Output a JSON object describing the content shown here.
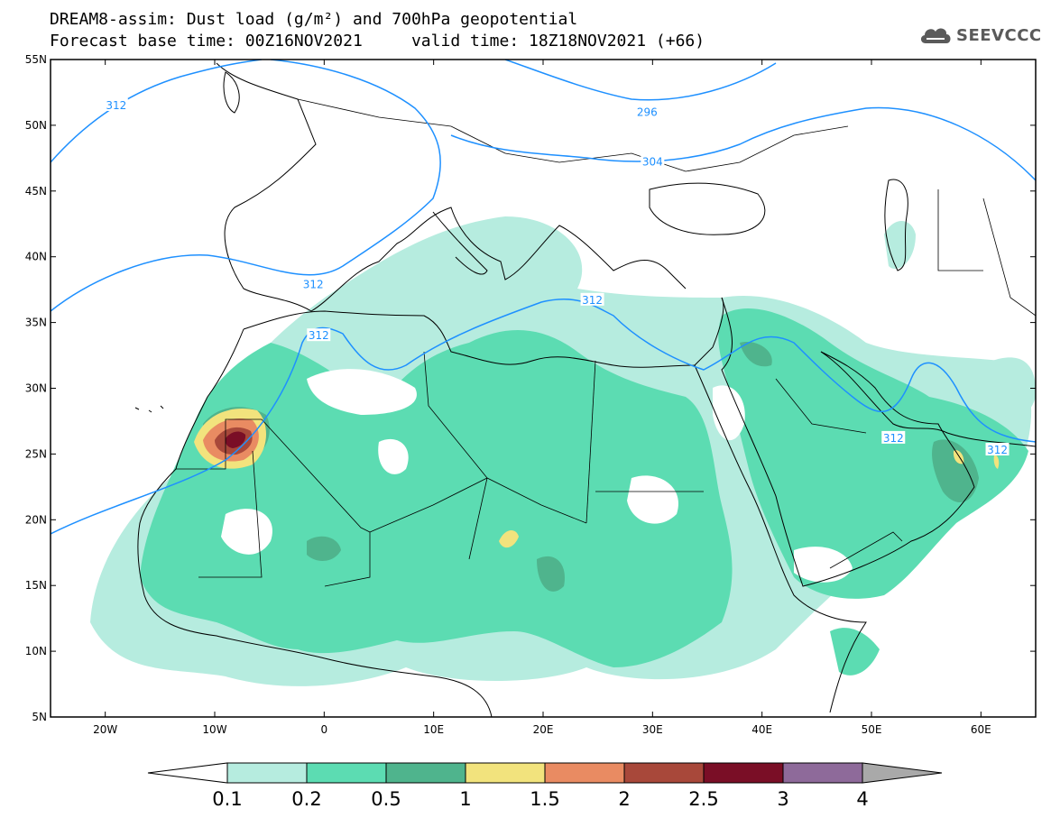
{
  "title_line1": "DREAM8-assim: Dust load (g/m²) and 700hPa geopotential",
  "title_line2_base": "Forecast base time: 00Z16NOV2021",
  "title_line2_valid": "valid time: 18Z18NOV2021 (+66)",
  "logo_text": "SEEVCCC",
  "map": {
    "lon_range": [
      -25,
      65
    ],
    "lat_range": [
      5,
      55
    ],
    "lat_ticks": [
      "55N",
      "50N",
      "45N",
      "40N",
      "35N",
      "30N",
      "25N",
      "20N",
      "15N",
      "10N",
      "5N"
    ],
    "lon_ticks": [
      "20W",
      "10W",
      "0",
      "10E",
      "20E",
      "30E",
      "40E",
      "50E",
      "60E"
    ],
    "contour_labels": [
      {
        "text": "312",
        "lon": -19,
        "lat": 51.5
      },
      {
        "text": "296",
        "lon": 29.5,
        "lat": 51
      },
      {
        "text": "304",
        "lon": 30,
        "lat": 47.2
      },
      {
        "text": "312",
        "lon": -1,
        "lat": 37.9
      },
      {
        "text": "312",
        "lon": -0.5,
        "lat": 34
      },
      {
        "text": "312",
        "lon": 24.5,
        "lat": 36.7
      },
      {
        "text": "312",
        "lon": 52,
        "lat": 26.2
      },
      {
        "text": "312",
        "lon": 61.5,
        "lat": 25.3
      }
    ]
  },
  "colorbar": {
    "labels": [
      "0.1",
      "0.2",
      "0.5",
      "1",
      "1.5",
      "2",
      "2.5",
      "3",
      "4"
    ],
    "colors": [
      "#b6ecdf",
      "#5cdcb2",
      "#4fb48d",
      "#f2e37d",
      "#e98b62",
      "#a8483a",
      "#7a0e26",
      "#8e6a9a",
      "#a9a9a9"
    ],
    "under_color": "#ffffff"
  },
  "colors": {
    "contour": "#1e90ff",
    "coast": "#000000"
  }
}
